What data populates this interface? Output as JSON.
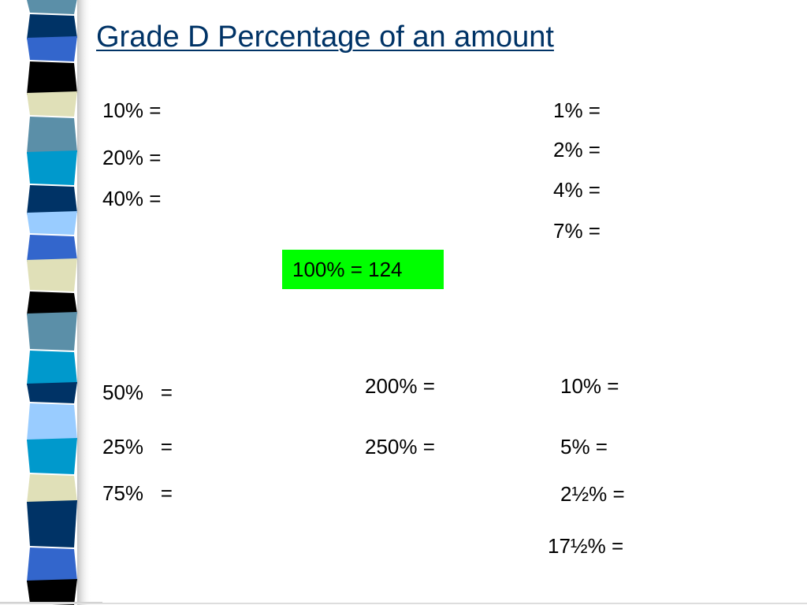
{
  "title": "Grade D Percentage of an amount",
  "left_column": [
    "10% =",
    "20% =",
    "40% ="
  ],
  "right_column": [
    "1% =",
    "2% =",
    "4% =",
    "7% ="
  ],
  "center_box": "100% = 124",
  "bottom_left": [
    "50%   =",
    "25%   =",
    "75%   ="
  ],
  "bottom_middle": [
    "200% =",
    "250% ="
  ],
  "bottom_right": [
    "10% =",
    "5% =",
    "2½% =",
    "17½% ="
  ]
}
